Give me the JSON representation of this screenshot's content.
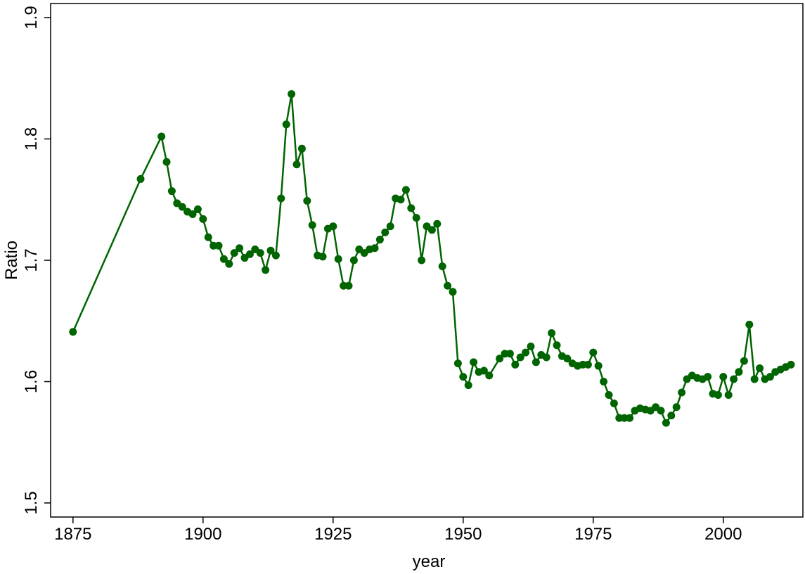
{
  "chart_data": {
    "type": "line",
    "x_label": "year",
    "y_label": "Ratio",
    "color": "#006400",
    "xlim": [
      1870.7,
      2015.3
    ],
    "ylim": [
      1.4884,
      1.9116
    ],
    "xticks": [
      1875,
      1900,
      1925,
      1950,
      1975,
      2000
    ],
    "yticks": [
      1.5,
      1.6,
      1.7,
      1.8,
      1.9
    ],
    "x": [
      1875,
      1888,
      1892,
      1893,
      1894,
      1895,
      1896,
      1897,
      1898,
      1899,
      1900,
      1901,
      1902,
      1903,
      1904,
      1905,
      1906,
      1907,
      1908,
      1909,
      1910,
      1911,
      1912,
      1913,
      1914,
      1915,
      1916,
      1917,
      1918,
      1919,
      1920,
      1921,
      1922,
      1923,
      1924,
      1925,
      1926,
      1927,
      1928,
      1929,
      1930,
      1931,
      1932,
      1933,
      1934,
      1935,
      1936,
      1937,
      1938,
      1939,
      1940,
      1941,
      1942,
      1943,
      1944,
      1945,
      1946,
      1947,
      1948,
      1949,
      1950,
      1951,
      1952,
      1953,
      1954,
      1955,
      1957,
      1958,
      1959,
      1960,
      1961,
      1962,
      1963,
      1964,
      1965,
      1966,
      1967,
      1968,
      1969,
      1970,
      1971,
      1972,
      1973,
      1974,
      1975,
      1976,
      1977,
      1978,
      1979,
      1980,
      1981,
      1982,
      1983,
      1984,
      1985,
      1986,
      1987,
      1988,
      1989,
      1990,
      1991,
      1992,
      1993,
      1994,
      1995,
      1996,
      1997,
      1998,
      1999,
      2000,
      2001,
      2002,
      2003,
      2004,
      2005,
      2006,
      2007,
      2008,
      2009,
      2010,
      2011,
      2012,
      2013
    ],
    "values": [
      1.641,
      1.767,
      1.802,
      1.781,
      1.757,
      1.747,
      1.744,
      1.74,
      1.738,
      1.742,
      1.734,
      1.719,
      1.712,
      1.712,
      1.701,
      1.697,
      1.706,
      1.71,
      1.702,
      1.705,
      1.709,
      1.706,
      1.692,
      1.708,
      1.704,
      1.751,
      1.812,
      1.837,
      1.779,
      1.792,
      1.749,
      1.729,
      1.704,
      1.703,
      1.726,
      1.728,
      1.701,
      1.679,
      1.679,
      1.7,
      1.709,
      1.706,
      1.709,
      1.71,
      1.717,
      1.723,
      1.728,
      1.751,
      1.75,
      1.758,
      1.743,
      1.735,
      1.7,
      1.728,
      1.725,
      1.73,
      1.695,
      1.679,
      1.674,
      1.615,
      1.604,
      1.597,
      1.616,
      1.608,
      1.609,
      1.605,
      1.619,
      1.623,
      1.623,
      1.614,
      1.62,
      1.624,
      1.629,
      1.616,
      1.622,
      1.62,
      1.64,
      1.63,
      1.621,
      1.619,
      1.615,
      1.613,
      1.614,
      1.614,
      1.624,
      1.613,
      1.6,
      1.589,
      1.582,
      1.57,
      1.57,
      1.57,
      1.576,
      1.578,
      1.577,
      1.576,
      1.579,
      1.576,
      1.566,
      1.572,
      1.579,
      1.591,
      1.602,
      1.605,
      1.603,
      1.602,
      1.604,
      1.59,
      1.589,
      1.604,
      1.589,
      1.602,
      1.608,
      1.617,
      1.647,
      1.602,
      1.611,
      1.602,
      1.604,
      1.608,
      1.61,
      1.612,
      1.614
    ]
  }
}
